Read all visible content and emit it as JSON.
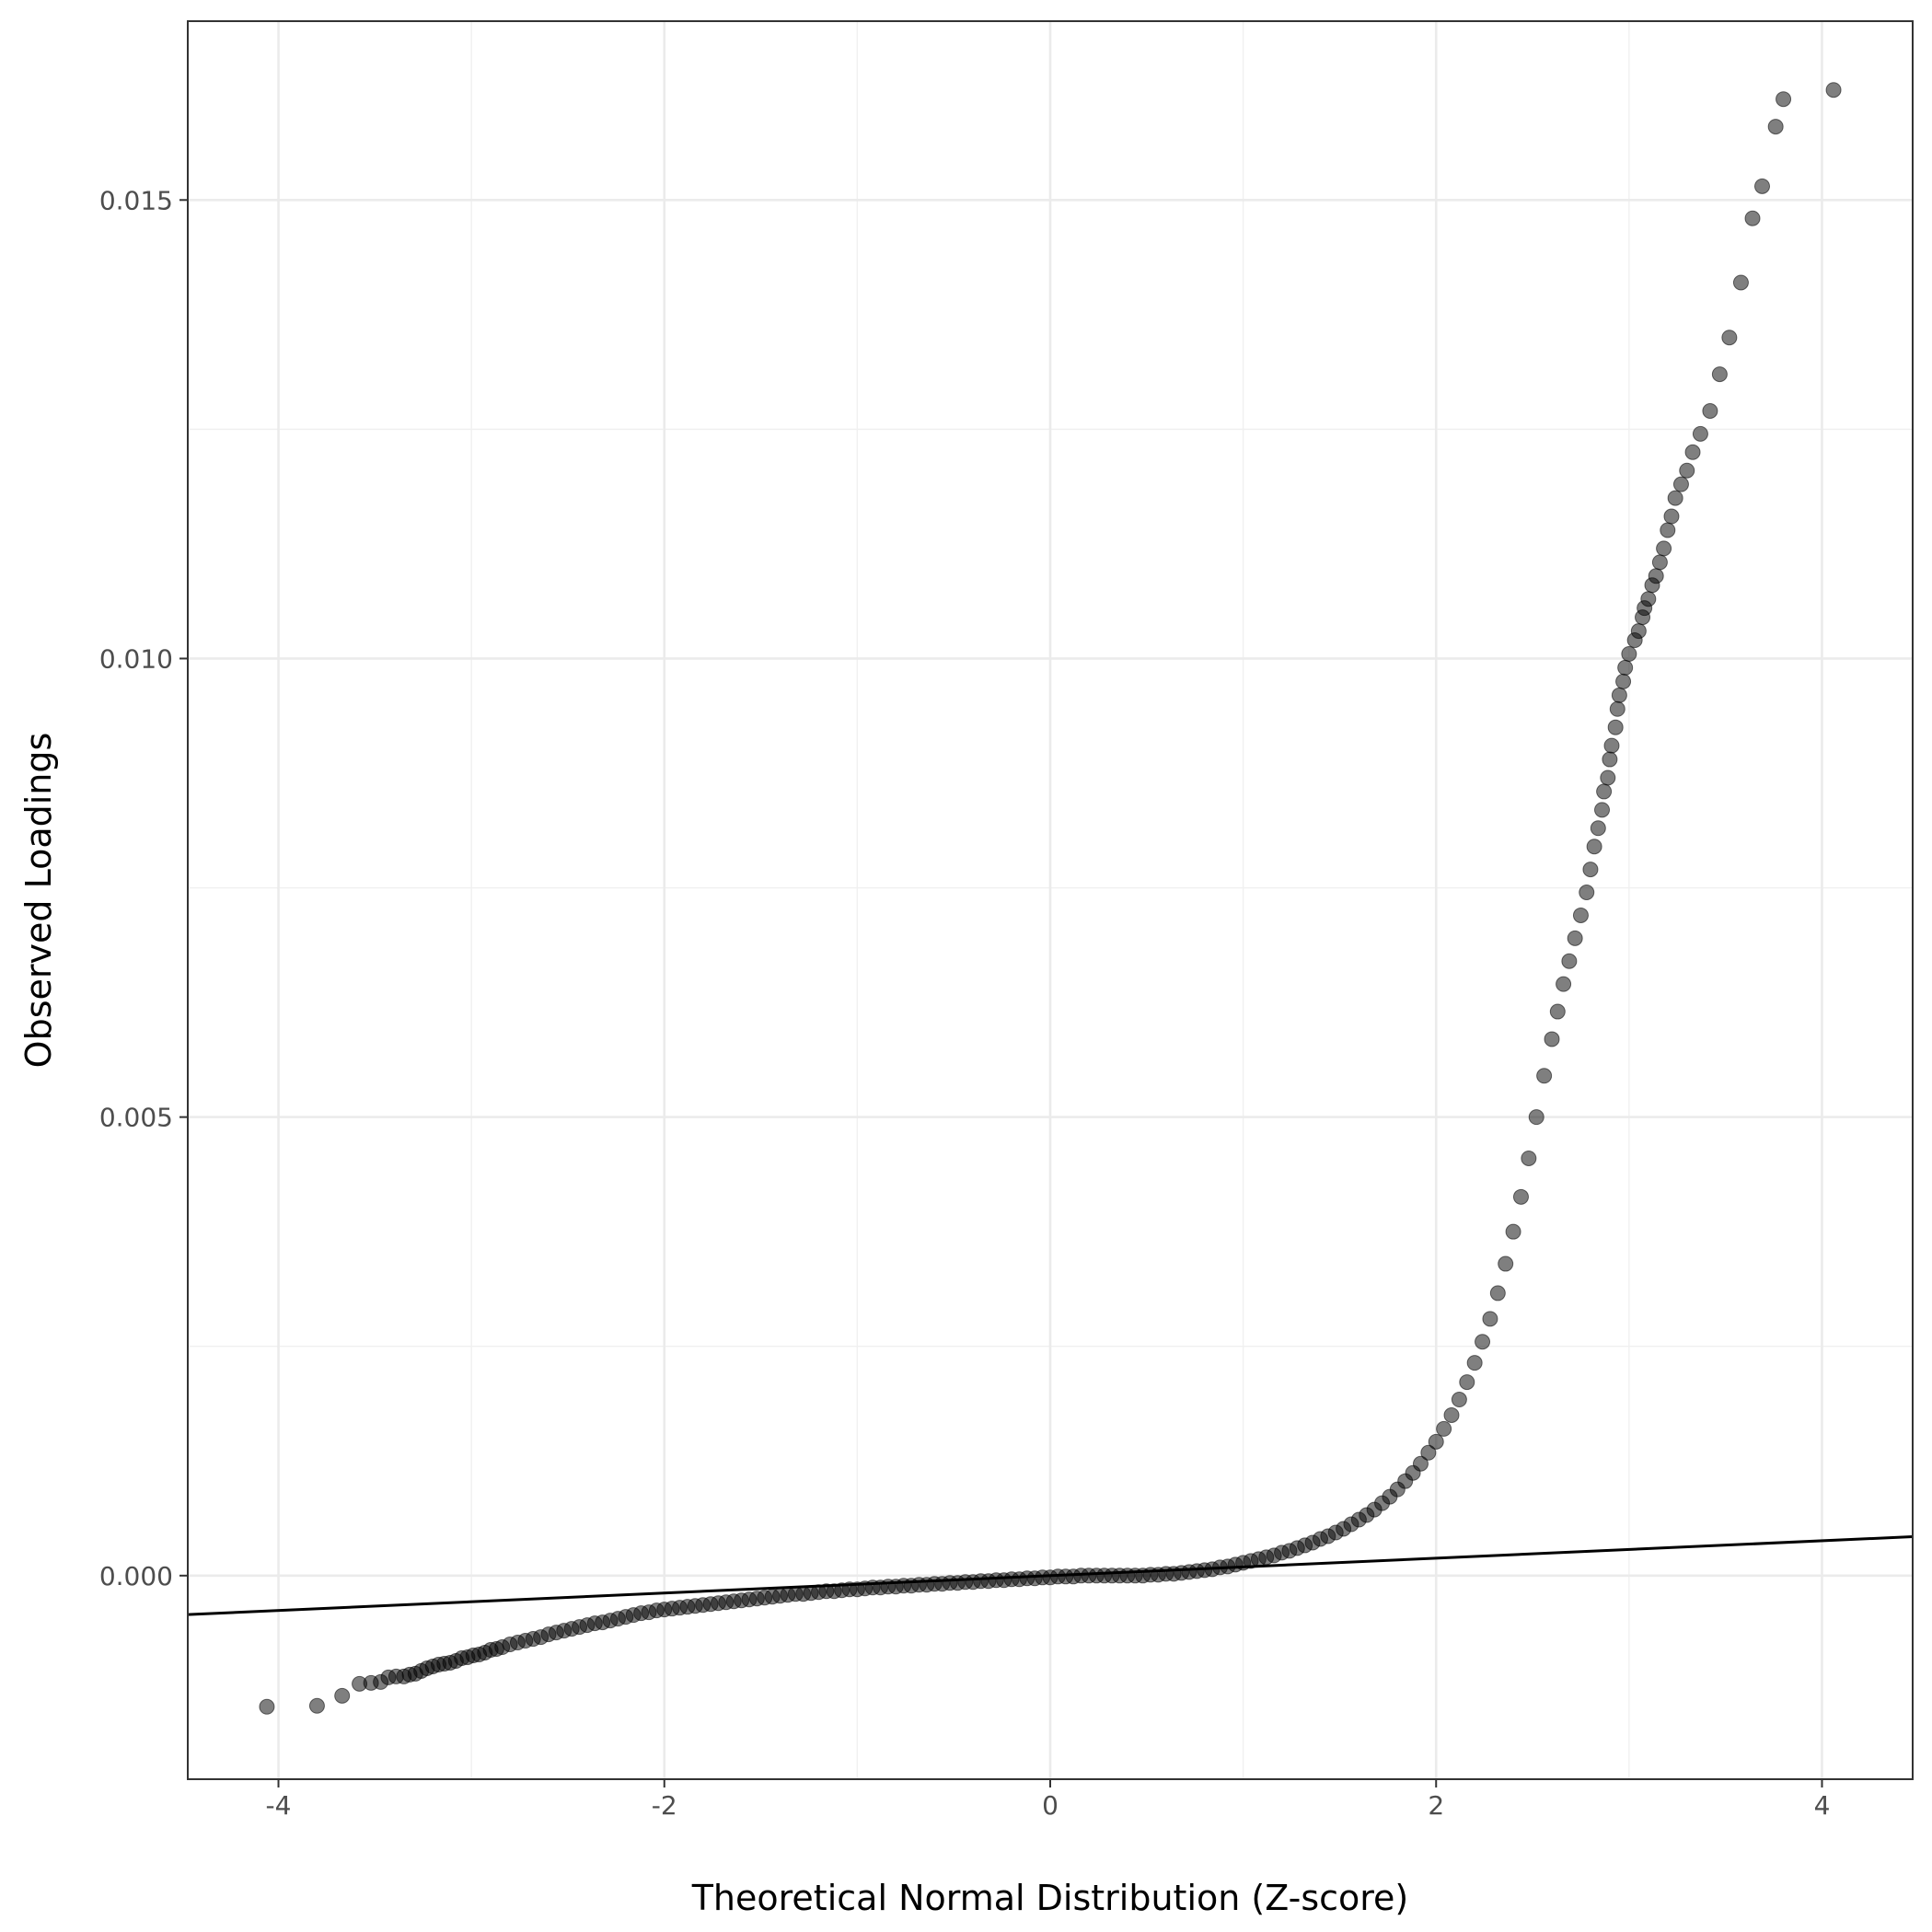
{
  "chart_data": {
    "type": "scatter",
    "title": "",
    "xlabel": "Theoretical Normal Distribution (Z-score)",
    "ylabel": "Observed Loadings",
    "xlim": [
      -4.47,
      4.47
    ],
    "ylim": [
      -0.00222,
      0.01695
    ],
    "x_ticks": [
      {
        "value": -4,
        "label": "-4"
      },
      {
        "value": -2,
        "label": "-2"
      },
      {
        "value": 0,
        "label": "0"
      },
      {
        "value": 2,
        "label": "2"
      },
      {
        "value": 4,
        "label": "4"
      }
    ],
    "y_ticks": [
      {
        "value": 0.0,
        "label": "0.000"
      },
      {
        "value": 0.005,
        "label": "0.005"
      },
      {
        "value": 0.01,
        "label": "0.010"
      },
      {
        "value": 0.015,
        "label": "0.015"
      }
    ],
    "grid": true,
    "reference_line": {
      "intercept": 0.0,
      "slope": 9.5e-05
    },
    "point_color": "#000000",
    "point_opacity": 0.5,
    "line_color": "#000000",
    "points": [
      [
        -4.06,
        -0.00143
      ],
      [
        -3.8,
        -0.00142
      ],
      [
        -3.67,
        -0.00131
      ],
      [
        -3.58,
        -0.00118
      ],
      [
        -3.52,
        -0.00117
      ],
      [
        -3.47,
        -0.00116
      ],
      [
        -3.43,
        -0.00111
      ],
      [
        -3.39,
        -0.0011
      ],
      [
        -3.35,
        -0.0011
      ],
      [
        -3.32,
        -0.00108
      ],
      [
        -3.29,
        -0.00107
      ],
      [
        -3.26,
        -0.00104
      ],
      [
        -3.23,
        -0.00101
      ],
      [
        -3.2,
        -0.00099
      ],
      [
        -3.17,
        -0.00097
      ],
      [
        -3.14,
        -0.00096
      ],
      [
        -3.11,
        -0.00095
      ],
      [
        -3.08,
        -0.00093
      ],
      [
        -3.05,
        -0.0009
      ],
      [
        -3.02,
        -0.00089
      ],
      [
        -2.99,
        -0.00087
      ],
      [
        -2.96,
        -0.00086
      ],
      [
        -2.93,
        -0.00084
      ],
      [
        -2.9,
        -0.00081
      ],
      [
        -2.87,
        -0.0008
      ],
      [
        -2.84,
        -0.00078
      ],
      [
        -2.8,
        -0.00075
      ],
      [
        -2.76,
        -0.00073
      ],
      [
        -2.72,
        -0.00071
      ],
      [
        -2.68,
        -0.00069
      ],
      [
        -2.64,
        -0.00067
      ],
      [
        -2.6,
        -0.00064
      ],
      [
        -2.56,
        -0.00062
      ],
      [
        -2.52,
        -0.0006
      ],
      [
        -2.48,
        -0.00058
      ],
      [
        -2.44,
        -0.00056
      ],
      [
        -2.4,
        -0.00054
      ],
      [
        -2.36,
        -0.00052
      ],
      [
        -2.32,
        -0.00051
      ],
      [
        -2.28,
        -0.00049
      ],
      [
        -2.24,
        -0.00047
      ],
      [
        -2.2,
        -0.00045
      ],
      [
        -2.16,
        -0.00043
      ],
      [
        -2.12,
        -0.00041
      ],
      [
        -2.08,
        -0.0004
      ],
      [
        -2.04,
        -0.00038
      ],
      [
        -2.0,
        -0.00037
      ],
      [
        -1.96,
        -0.00036
      ],
      [
        -1.92,
        -0.00035
      ],
      [
        -1.88,
        -0.00034
      ],
      [
        -1.84,
        -0.00033
      ],
      [
        -1.8,
        -0.00032
      ],
      [
        -1.76,
        -0.00031
      ],
      [
        -1.72,
        -0.0003
      ],
      [
        -1.68,
        -0.00029
      ],
      [
        -1.64,
        -0.00028
      ],
      [
        -1.6,
        -0.00027
      ],
      [
        -1.56,
        -0.00026
      ],
      [
        -1.52,
        -0.00025
      ],
      [
        -1.48,
        -0.00024
      ],
      [
        -1.44,
        -0.00023
      ],
      [
        -1.4,
        -0.00022
      ],
      [
        -1.36,
        -0.00021
      ],
      [
        -1.32,
        -0.0002
      ],
      [
        -1.28,
        -0.0002
      ],
      [
        -1.24,
        -0.00019
      ],
      [
        -1.2,
        -0.00018
      ],
      [
        -1.16,
        -0.00017
      ],
      [
        -1.12,
        -0.00017
      ],
      [
        -1.08,
        -0.00016
      ],
      [
        -1.04,
        -0.00015
      ],
      [
        -1.0,
        -0.00015
      ],
      [
        -0.96,
        -0.00014
      ],
      [
        -0.92,
        -0.00013
      ],
      [
        -0.88,
        -0.00013
      ],
      [
        -0.84,
        -0.00012
      ],
      [
        -0.8,
        -0.00012
      ],
      [
        -0.76,
        -0.00011
      ],
      [
        -0.72,
        -0.00011
      ],
      [
        -0.68,
        -0.0001
      ],
      [
        -0.64,
        -0.0001
      ],
      [
        -0.6,
        -9e-05
      ],
      [
        -0.56,
        -9e-05
      ],
      [
        -0.52,
        -8e-05
      ],
      [
        -0.48,
        -8e-05
      ],
      [
        -0.44,
        -7e-05
      ],
      [
        -0.4,
        -7e-05
      ],
      [
        -0.36,
        -6e-05
      ],
      [
        -0.32,
        -6e-05
      ],
      [
        -0.28,
        -5e-05
      ],
      [
        -0.24,
        -5e-05
      ],
      [
        -0.2,
        -4e-05
      ],
      [
        -0.16,
        -4e-05
      ],
      [
        -0.12,
        -3e-05
      ],
      [
        -0.08,
        -3e-05
      ],
      [
        -0.04,
        -2e-05
      ],
      [
        0.0,
        -2e-05
      ],
      [
        0.04,
        -1e-05
      ],
      [
        0.08,
        -1e-05
      ],
      [
        0.12,
        -1e-05
      ],
      [
        0.16,
        0.0
      ],
      [
        0.2,
        0.0
      ],
      [
        0.24,
        0.0
      ],
      [
        0.28,
        0.0
      ],
      [
        0.32,
        0.0
      ],
      [
        0.36,
        0.0
      ],
      [
        0.4,
        0.0
      ],
      [
        0.44,
        0.0
      ],
      [
        0.48,
        0.0
      ],
      [
        0.52,
        1e-05
      ],
      [
        0.56,
        1e-05
      ],
      [
        0.6,
        2e-05
      ],
      [
        0.64,
        2e-05
      ],
      [
        0.68,
        3e-05
      ],
      [
        0.72,
        4e-05
      ],
      [
        0.76,
        5e-05
      ],
      [
        0.8,
        6e-05
      ],
      [
        0.84,
        7e-05
      ],
      [
        0.88,
        9e-05
      ],
      [
        0.92,
        0.0001
      ],
      [
        0.96,
        0.00012
      ],
      [
        1.0,
        0.00014
      ],
      [
        1.04,
        0.00016
      ],
      [
        1.08,
        0.00018
      ],
      [
        1.12,
        0.0002
      ],
      [
        1.16,
        0.00022
      ],
      [
        1.2,
        0.00025
      ],
      [
        1.24,
        0.00027
      ],
      [
        1.28,
        0.0003
      ],
      [
        1.32,
        0.00033
      ],
      [
        1.36,
        0.00036
      ],
      [
        1.4,
        0.0004
      ],
      [
        1.44,
        0.00043
      ],
      [
        1.48,
        0.00047
      ],
      [
        1.52,
        0.00051
      ],
      [
        1.56,
        0.00056
      ],
      [
        1.6,
        0.00061
      ],
      [
        1.64,
        0.00066
      ],
      [
        1.68,
        0.00072
      ],
      [
        1.72,
        0.00079
      ],
      [
        1.76,
        0.00086
      ],
      [
        1.8,
        0.00094
      ],
      [
        1.84,
        0.00103
      ],
      [
        1.88,
        0.00112
      ],
      [
        1.92,
        0.00122
      ],
      [
        1.96,
        0.00134
      ],
      [
        2.0,
        0.00146
      ],
      [
        2.04,
        0.0016
      ],
      [
        2.08,
        0.00175
      ],
      [
        2.12,
        0.00192
      ],
      [
        2.16,
        0.00211
      ],
      [
        2.2,
        0.00232
      ],
      [
        2.24,
        0.00255
      ],
      [
        2.28,
        0.0028
      ],
      [
        2.32,
        0.00308
      ],
      [
        2.36,
        0.0034
      ],
      [
        2.4,
        0.00375
      ],
      [
        2.44,
        0.00413
      ],
      [
        2.48,
        0.00455
      ],
      [
        2.52,
        0.005
      ],
      [
        2.56,
        0.00545
      ],
      [
        2.6,
        0.00585
      ],
      [
        2.63,
        0.00615
      ],
      [
        2.66,
        0.00645
      ],
      [
        2.69,
        0.0067
      ],
      [
        2.72,
        0.00695
      ],
      [
        2.75,
        0.0072
      ],
      [
        2.78,
        0.00745
      ],
      [
        2.8,
        0.0077
      ],
      [
        2.82,
        0.00795
      ],
      [
        2.84,
        0.00815
      ],
      [
        2.86,
        0.00835
      ],
      [
        2.87,
        0.00855
      ],
      [
        2.89,
        0.0087
      ],
      [
        2.9,
        0.0089
      ],
      [
        2.91,
        0.00905
      ],
      [
        2.93,
        0.00925
      ],
      [
        2.94,
        0.00945
      ],
      [
        2.95,
        0.0096
      ],
      [
        2.97,
        0.00975
      ],
      [
        2.98,
        0.0099
      ],
      [
        3.0,
        0.01005
      ],
      [
        3.03,
        0.0102
      ],
      [
        3.05,
        0.0103
      ],
      [
        3.07,
        0.01045
      ],
      [
        3.08,
        0.01055
      ],
      [
        3.1,
        0.01065
      ],
      [
        3.12,
        0.0108
      ],
      [
        3.14,
        0.0109
      ],
      [
        3.16,
        0.01105
      ],
      [
        3.18,
        0.0112
      ],
      [
        3.2,
        0.0114
      ],
      [
        3.22,
        0.01155
      ],
      [
        3.24,
        0.01175
      ],
      [
        3.27,
        0.0119
      ],
      [
        3.3,
        0.01205
      ],
      [
        3.33,
        0.01225
      ],
      [
        3.37,
        0.01245
      ],
      [
        3.42,
        0.0127
      ],
      [
        3.47,
        0.0131
      ],
      [
        3.52,
        0.0135
      ],
      [
        3.58,
        0.0141
      ],
      [
        3.64,
        0.0148
      ],
      [
        3.69,
        0.01515
      ],
      [
        3.76,
        0.0158
      ],
      [
        3.8,
        0.0161
      ],
      [
        4.06,
        0.0162
      ]
    ]
  }
}
